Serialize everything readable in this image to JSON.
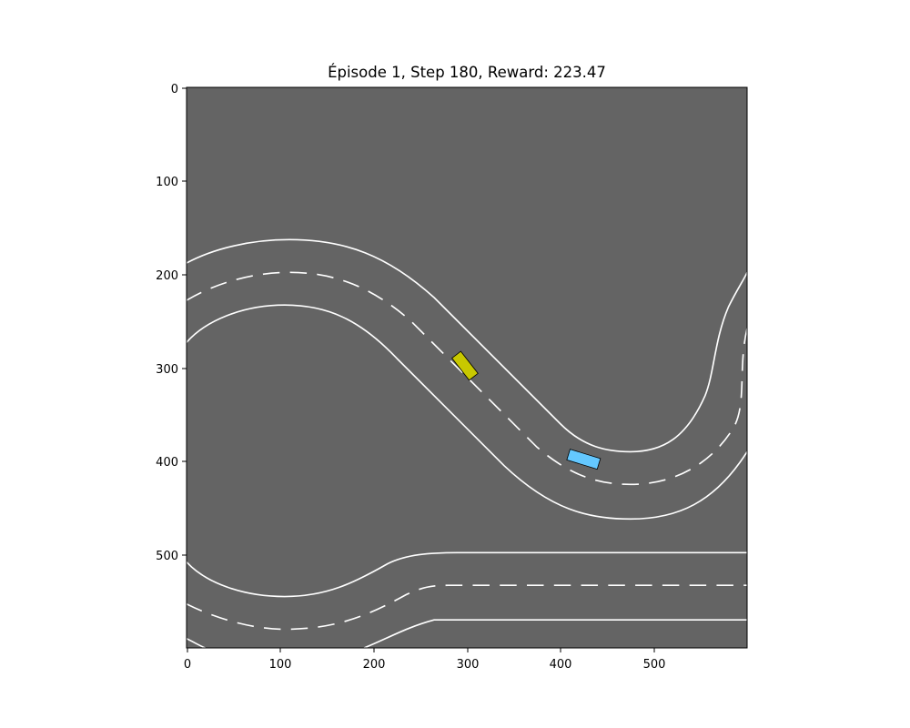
{
  "figure": {
    "title": "Épisode 1, Step 180, Reward: 223.47"
  },
  "axes": {
    "x_ticks": [
      "0",
      "100",
      "200",
      "300",
      "400",
      "500"
    ],
    "y_ticks": [
      "0",
      "100",
      "200",
      "300",
      "400",
      "500"
    ]
  },
  "scene": {
    "background_color": "#646464",
    "line_color": "#ffffff",
    "agent_car": {
      "name": "yellow car",
      "color": "#c8c800"
    },
    "other_car": {
      "name": "blue car",
      "color": "#64c8ff"
    }
  }
}
